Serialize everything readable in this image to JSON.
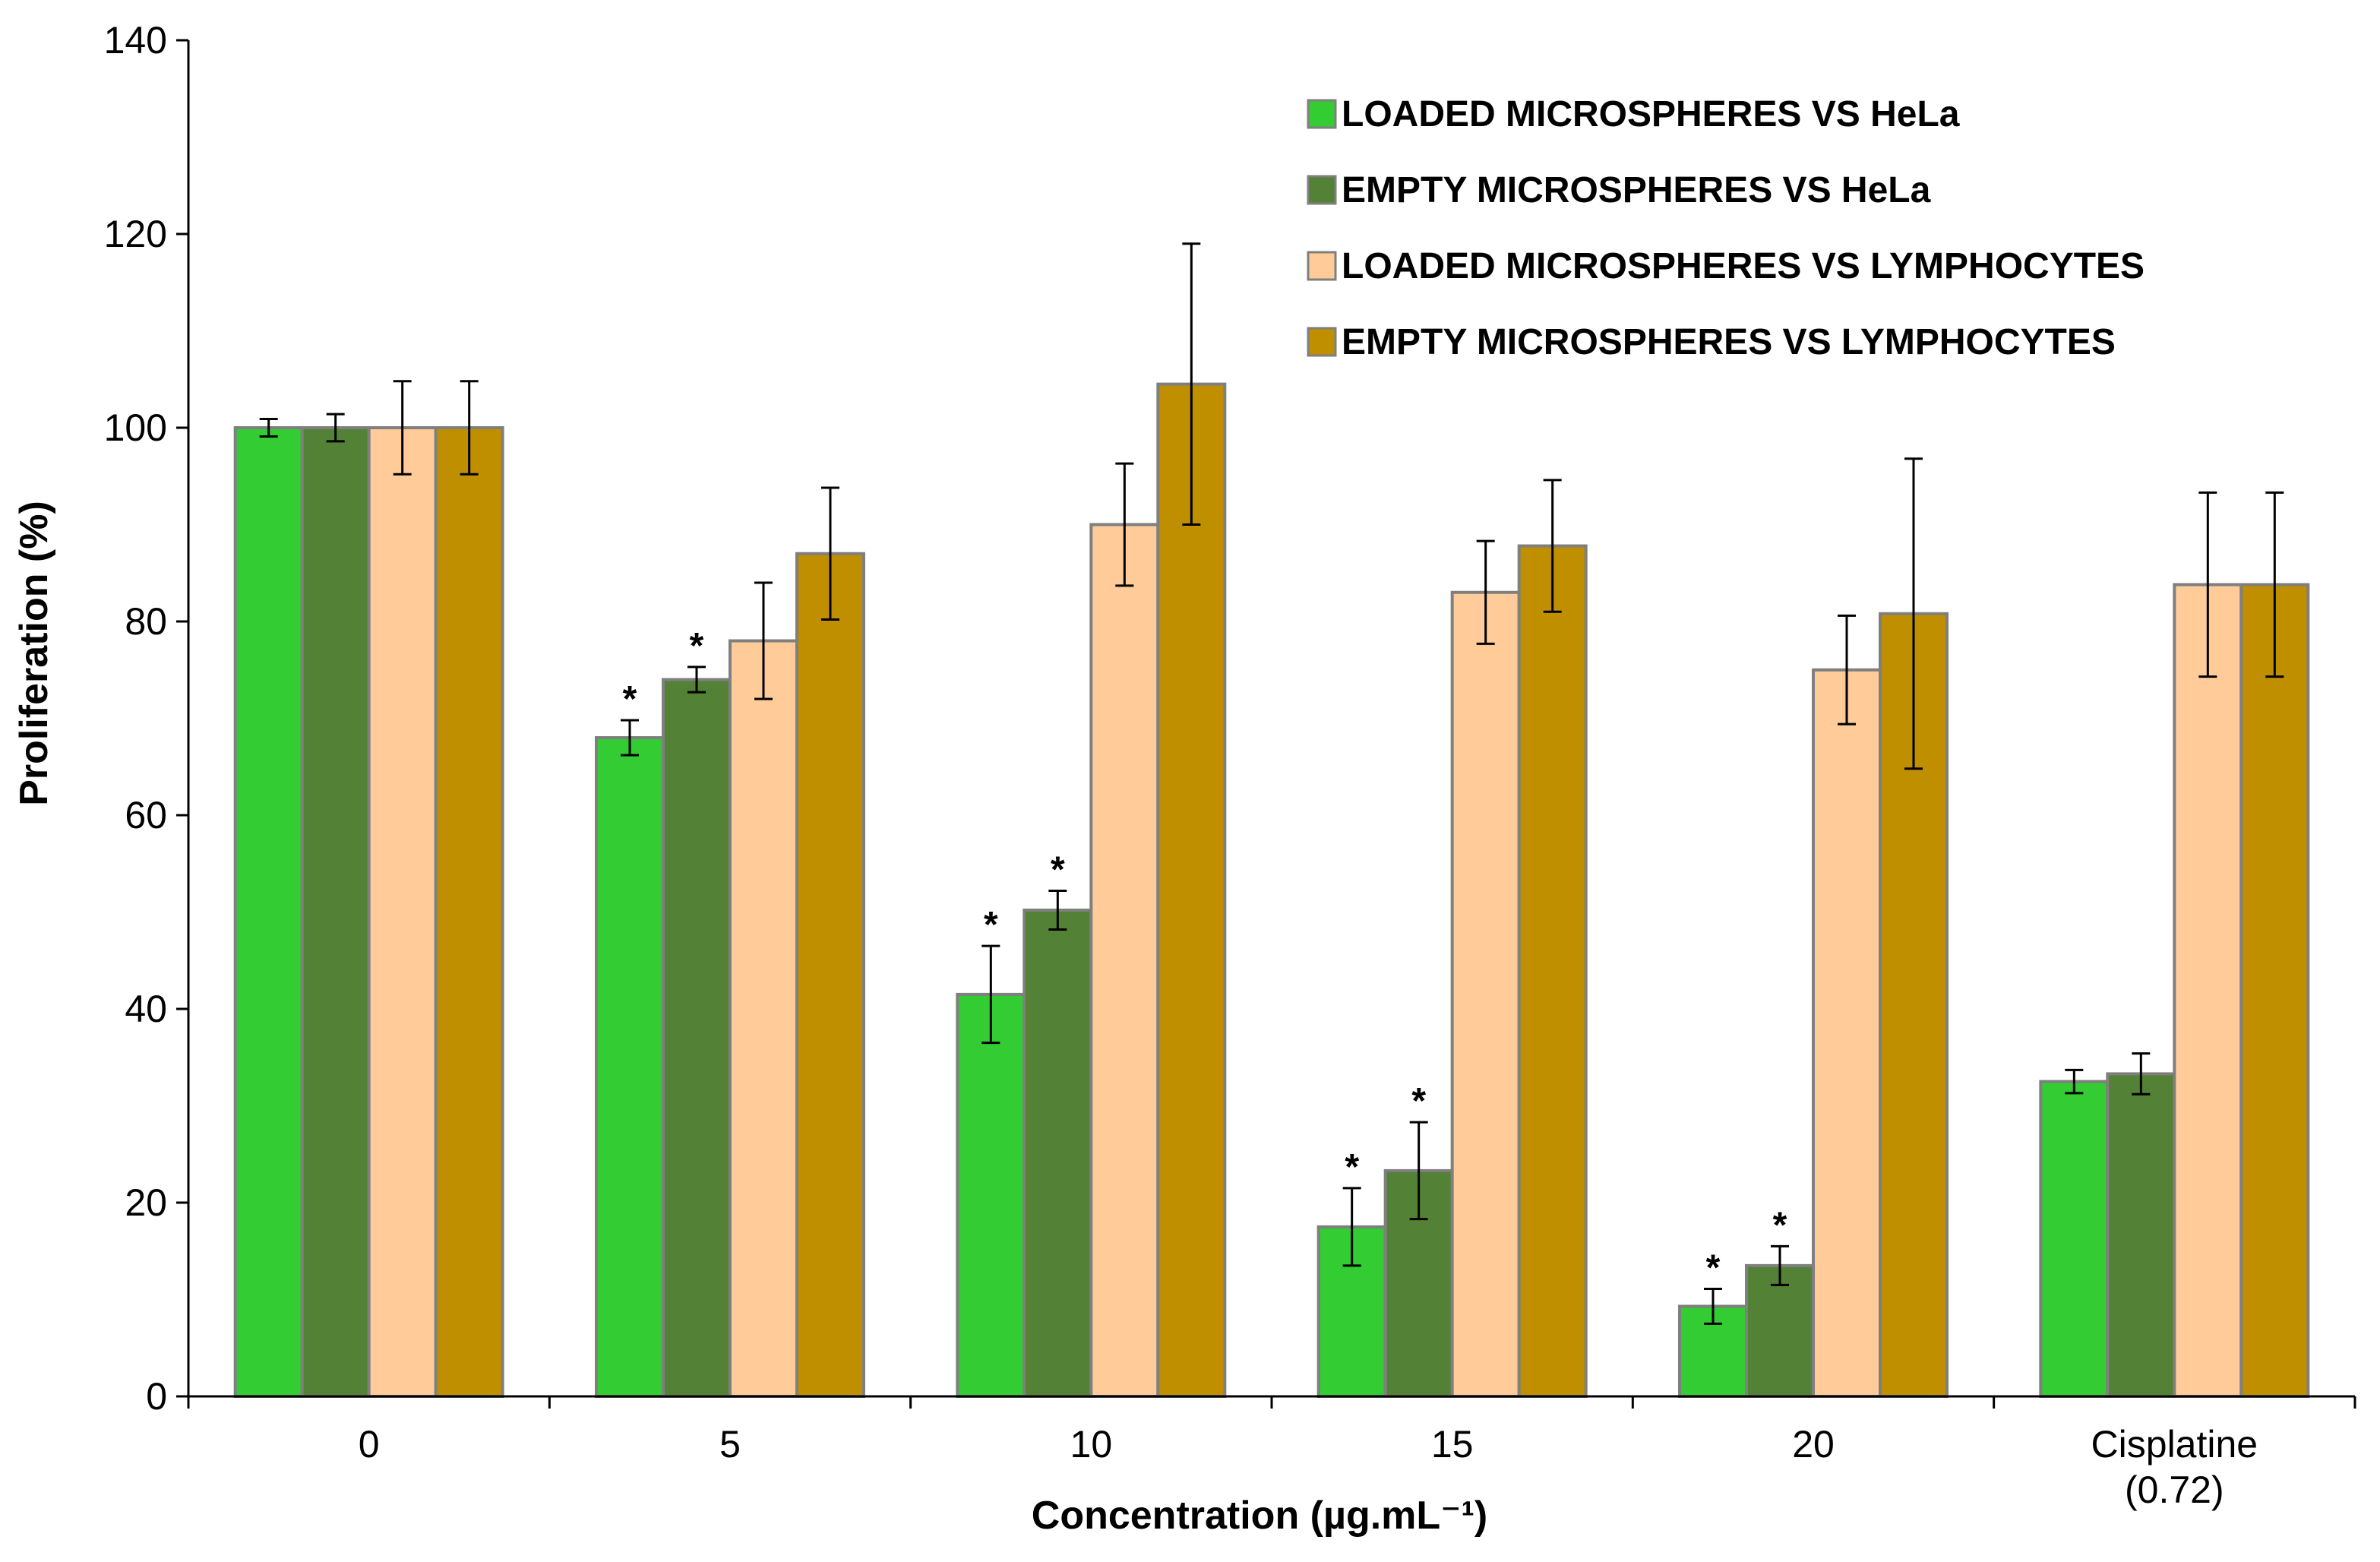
{
  "chart_data": {
    "type": "bar",
    "title": "",
    "xlabel": "Concentration (µg.mL⁻¹)",
    "ylabel": "Proliferation (%)",
    "ylim": [
      0,
      140
    ],
    "yticks": [
      0,
      20,
      40,
      60,
      80,
      100,
      120,
      140
    ],
    "categories": [
      [
        "0"
      ],
      [
        "5"
      ],
      [
        "10"
      ],
      [
        "15"
      ],
      [
        "20"
      ],
      [
        "Cisplatine",
        "(0.72)"
      ]
    ],
    "legend_position": "top-right",
    "series": [
      {
        "name": "LOADED MICROSPHERES VS  HeLa",
        "color": "#33cc33",
        "values": [
          100,
          68,
          41.5,
          17.5,
          9.3,
          32.5
        ],
        "errors": [
          0.9,
          1.8,
          5,
          4,
          1.8,
          1.2
        ],
        "significant": [
          false,
          true,
          true,
          true,
          true,
          false
        ]
      },
      {
        "name": "EMPTY MICROSPHERES  VS HeLa",
        "color": "#538135",
        "values": [
          100,
          74,
          50.2,
          23.3,
          13.5,
          33.3
        ],
        "errors": [
          1.4,
          1.3,
          2,
          5,
          2,
          2.1
        ],
        "significant": [
          false,
          true,
          true,
          true,
          true,
          false
        ]
      },
      {
        "name": "LOADED MICROSPHERES VS LYMPHOCYTES",
        "color": "#ffcc99",
        "values": [
          100,
          78,
          90,
          83,
          75,
          83.8
        ],
        "errors": [
          4.8,
          6,
          6.3,
          5.3,
          5.6,
          9.5
        ],
        "significant": [
          false,
          false,
          false,
          false,
          false,
          false
        ]
      },
      {
        "name": "EMPTY MICROSPHERES VS LYMPHOCYTES",
        "color": "#bf8f00",
        "values": [
          100,
          87,
          104.5,
          87.8,
          80.8,
          83.8
        ],
        "errors": [
          4.8,
          6.8,
          14.5,
          6.8,
          16,
          9.5
        ],
        "significant": [
          false,
          false,
          false,
          false,
          false,
          false
        ]
      }
    ],
    "significance_marker": "*"
  }
}
